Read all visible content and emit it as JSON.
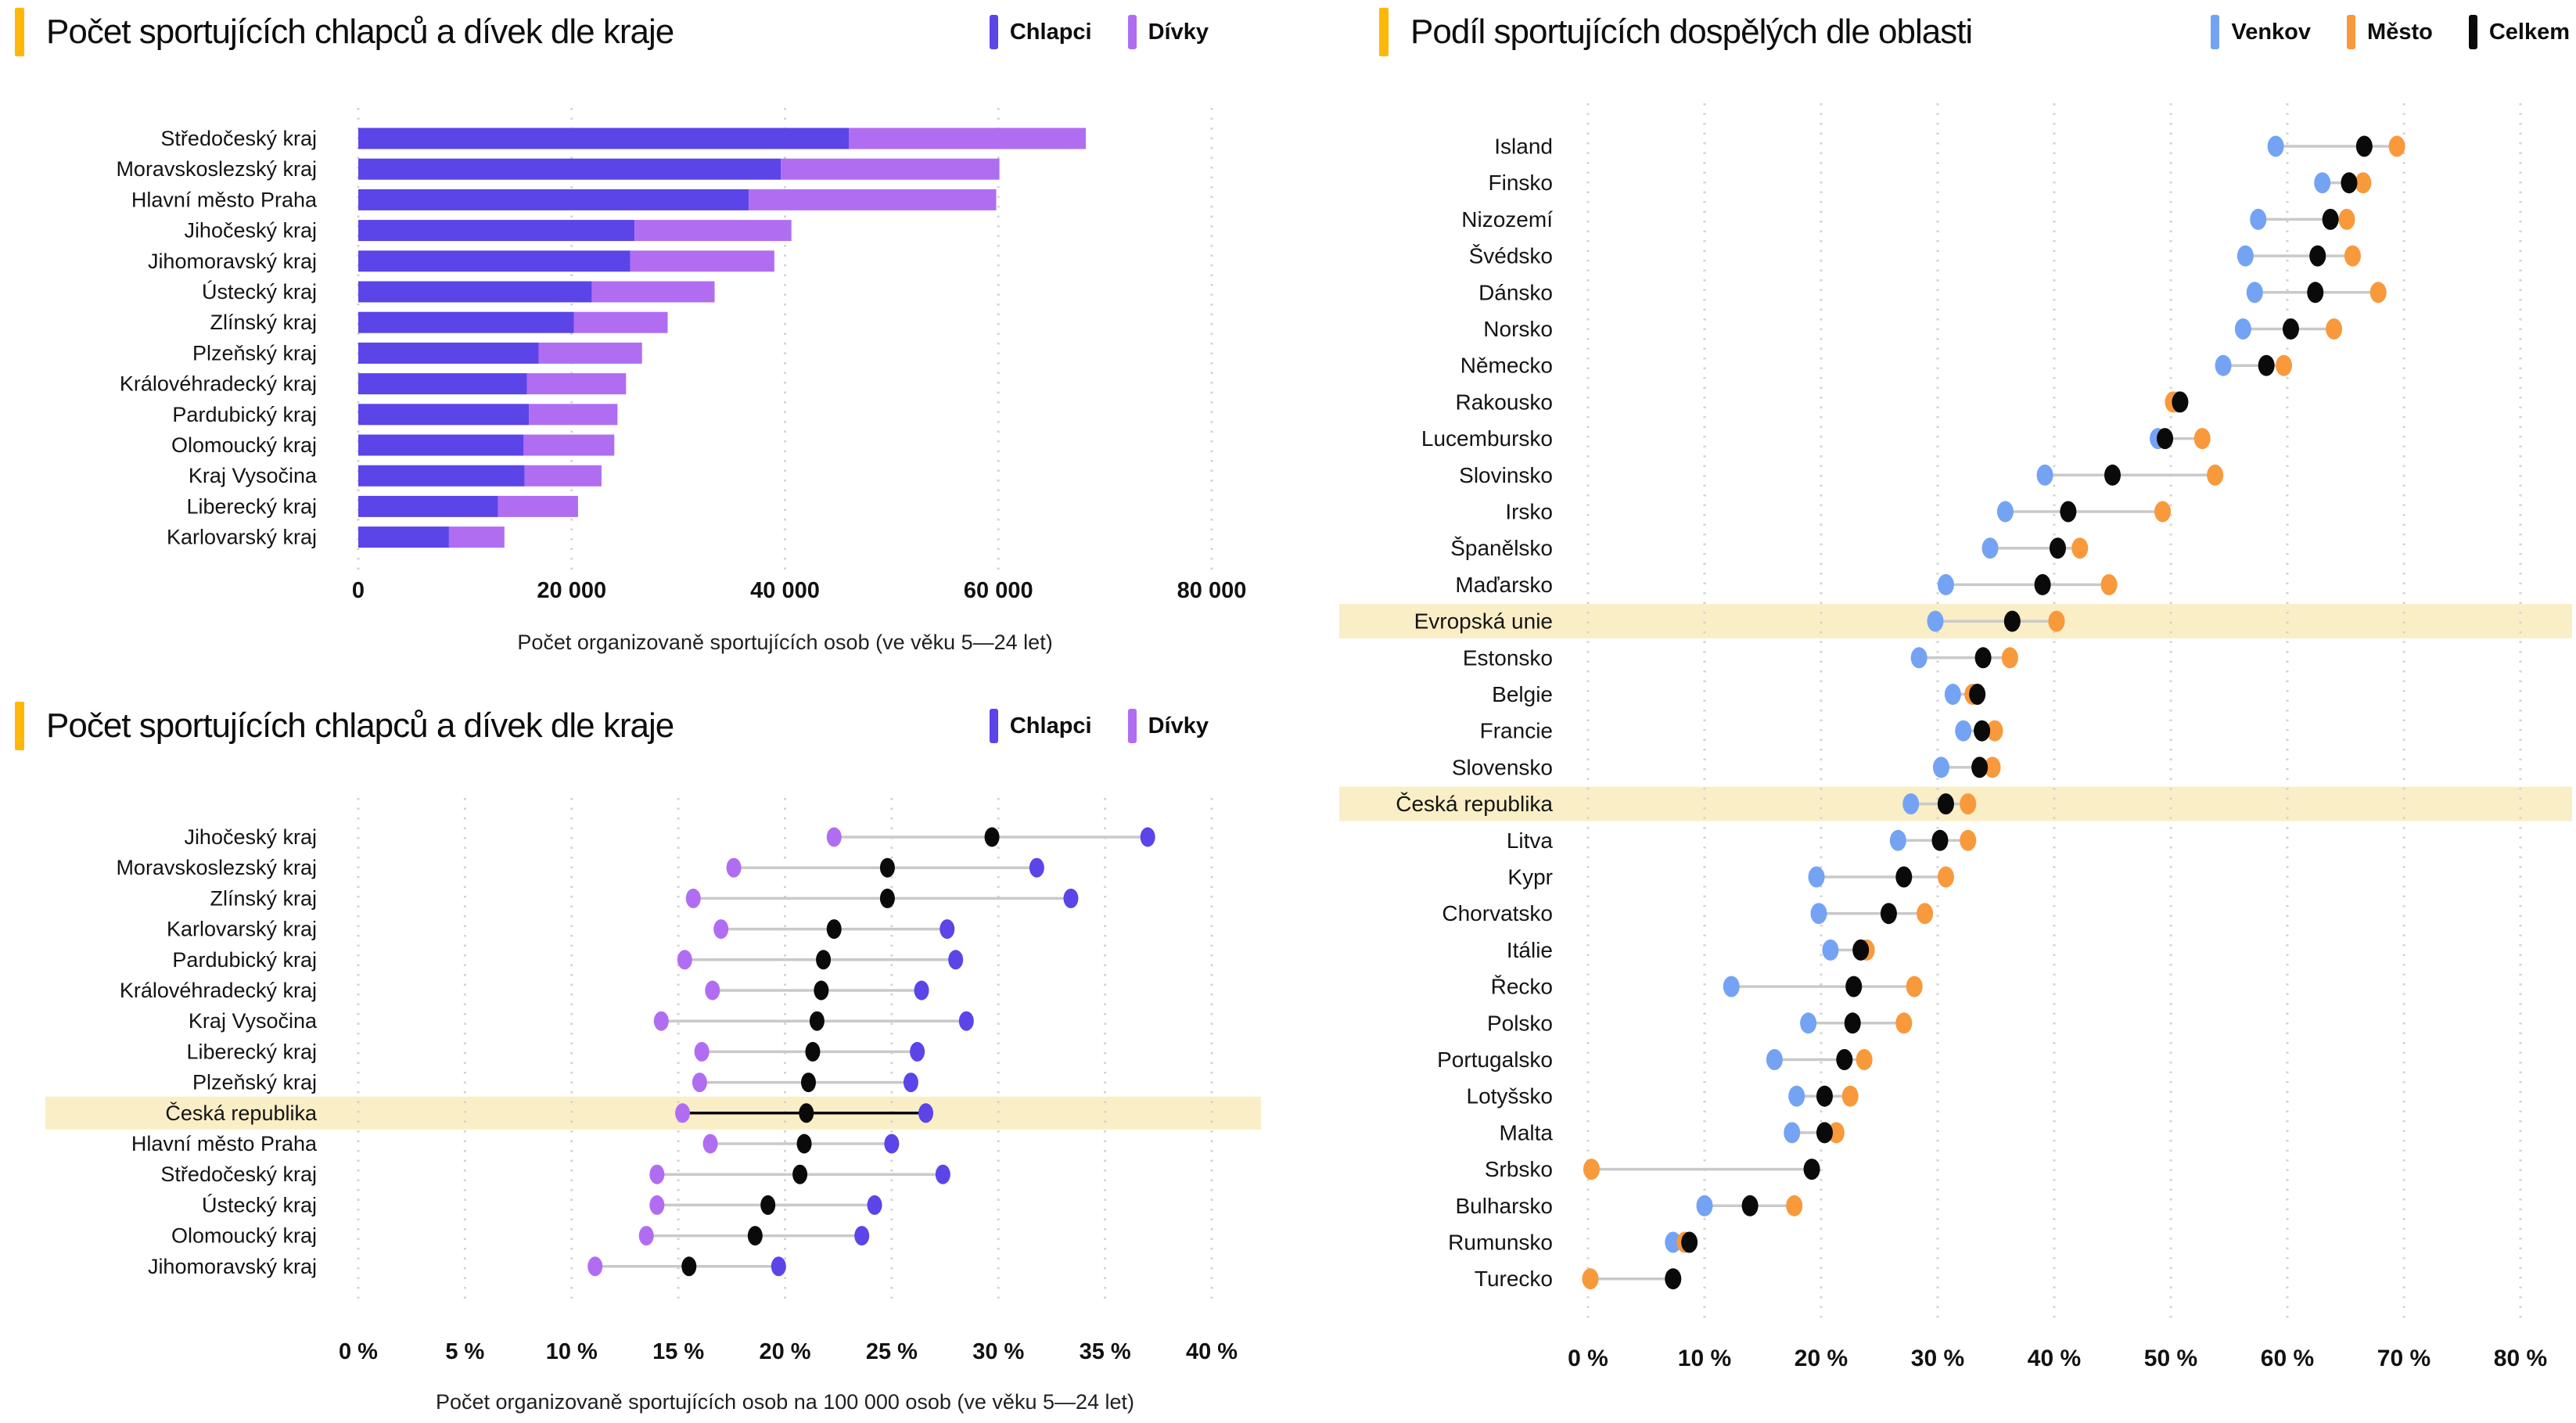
{
  "colors": {
    "accent": "#ffb70a",
    "highlight_band": "#faeec6",
    "grid": "#d2d2d2",
    "connector": "#c9c9c9",
    "chlapci": "#5b44e8",
    "divky": "#b16df2",
    "venkov": "#74a3f3",
    "mesto": "#f8993c",
    "celkem": "#0a0a0a"
  },
  "chart_data": [
    {
      "id": "sportujici-deti-kraje-sloupce",
      "type": "bar",
      "stacked": true,
      "orientation": "horizontal",
      "title": "Počet sportujících chlapců a dívek dle kraje",
      "xlabel": "Počet organizovaně sportujících osob (ve věku 5—24 let)",
      "xlim": [
        0,
        80000
      ],
      "grid": true,
      "legend_position": "top-right",
      "x_ticks": [
        {
          "value": 0,
          "label": "0"
        },
        {
          "value": 20000,
          "label": "20 000"
        },
        {
          "value": 40000,
          "label": "40 000"
        },
        {
          "value": 60000,
          "label": "60 000"
        },
        {
          "value": 80000,
          "label": "80 000"
        }
      ],
      "categories": [
        "Středočeský kraj",
        "Moravskoslezský kraj",
        "Hlavní město Praha",
        "Jihočeský kraj",
        "Jihomoravský kraj",
        "Ústecký kraj",
        "Zlínský kraj",
        "Plzeňský kraj",
        "Královéhradecký kraj",
        "Pardubický kraj",
        "Olomoucký kraj",
        "Kraj Vysočina",
        "Liberecký kraj",
        "Karlovarský kraj"
      ],
      "series": [
        {
          "name": "Chlapci",
          "color": "#5b44e8",
          "values": [
            46000,
            39600,
            36600,
            25900,
            25500,
            21900,
            20200,
            16900,
            15800,
            16000,
            15500,
            15600,
            13100,
            8500
          ]
        },
        {
          "name": "Dívky",
          "color": "#b16df2",
          "values": [
            22200,
            20500,
            23200,
            14700,
            13500,
            11500,
            8800,
            9700,
            9300,
            8300,
            8500,
            7200,
            7500,
            5200
          ]
        }
      ],
      "legend": [
        {
          "label": "Chlapci",
          "color": "#5b44e8"
        },
        {
          "label": "Dívky",
          "color": "#b16df2"
        }
      ],
      "highlights": []
    },
    {
      "id": "sportujici-deti-kraje-dumbbell",
      "type": "scatter",
      "variant": "dumbbell",
      "title": "Počet sportujících chlapců a dívek dle kraje",
      "xlabel": "Počet organizovaně sportujících osob na 100 000 osob (ve věku 5—24 let)",
      "xlim": [
        0,
        40
      ],
      "grid": true,
      "legend_position": "top-right",
      "x_ticks": [
        {
          "value": 0,
          "label": "0 %"
        },
        {
          "value": 5,
          "label": "5 %"
        },
        {
          "value": 10,
          "label": "10 %"
        },
        {
          "value": 15,
          "label": "15 %"
        },
        {
          "value": 20,
          "label": "20 %"
        },
        {
          "value": 25,
          "label": "25 %"
        },
        {
          "value": 30,
          "label": "30 %"
        },
        {
          "value": 35,
          "label": "35 %"
        },
        {
          "value": 40,
          "label": "40 %"
        }
      ],
      "categories": [
        "Jihočeský kraj",
        "Moravskoslezský kraj",
        "Zlínský kraj",
        "Karlovarský kraj",
        "Pardubický kraj",
        "Královéhradecký kraj",
        "Kraj Vysočina",
        "Liberecký kraj",
        "Plzeňský kraj",
        "Česká republika",
        "Hlavní město Praha",
        "Středočeský kraj",
        "Ústecký kraj",
        "Olomoucký kraj",
        "Jihomoravský kraj"
      ],
      "series": [
        {
          "name": "Dívky",
          "color": "#b16df2",
          "values": [
            22.3,
            17.6,
            15.7,
            17.0,
            15.3,
            16.6,
            14.2,
            16.1,
            16.0,
            15.2,
            16.5,
            14.0,
            14.0,
            13.5,
            11.1
          ]
        },
        {
          "name": "Chlapci",
          "color": "#5b44e8",
          "values": [
            37.0,
            31.8,
            33.4,
            27.6,
            28.0,
            26.4,
            28.5,
            26.2,
            25.9,
            26.6,
            25.0,
            27.4,
            24.2,
            23.6,
            19.7
          ]
        },
        {
          "name": "Celkem",
          "color": "#0a0a0a",
          "values": [
            29.7,
            24.8,
            24.8,
            22.3,
            21.8,
            21.7,
            21.5,
            21.3,
            21.1,
            21.0,
            20.9,
            20.7,
            19.2,
            18.6,
            15.5
          ]
        }
      ],
      "legend": [
        {
          "label": "Chlapci",
          "color": "#5b44e8"
        },
        {
          "label": "Dívky",
          "color": "#b16df2"
        }
      ],
      "highlights": [
        "Česká republika"
      ],
      "highlight_connector_black": true
    },
    {
      "id": "sportujici-dospeli-oblasti",
      "type": "scatter",
      "variant": "dumbbell",
      "title": "Podíl sportujících dospělých dle oblasti",
      "xlabel": "",
      "xlim": [
        0,
        80
      ],
      "grid": true,
      "legend_position": "top-right",
      "x_ticks": [
        {
          "value": 0,
          "label": "0 %"
        },
        {
          "value": 10,
          "label": "10 %"
        },
        {
          "value": 20,
          "label": "20 %"
        },
        {
          "value": 30,
          "label": "30 %"
        },
        {
          "value": 40,
          "label": "40 %"
        },
        {
          "value": 50,
          "label": "50 %"
        },
        {
          "value": 60,
          "label": "60 %"
        },
        {
          "value": 70,
          "label": "70 %"
        },
        {
          "value": 80,
          "label": "80 %"
        }
      ],
      "categories": [
        "Island",
        "Finsko",
        "Nizozemí",
        "Švédsko",
        "Dánsko",
        "Norsko",
        "Německo",
        "Rakousko",
        "Lucembursko",
        "Slovinsko",
        "Irsko",
        "Španělsko",
        "Maďarsko",
        "Evropská unie",
        "Estonsko",
        "Belgie",
        "Francie",
        "Slovensko",
        "Česká republika",
        "Litva",
        "Kypr",
        "Chorvatsko",
        "Itálie",
        "Řecko",
        "Polsko",
        "Portugalsko",
        "Lotyšsko",
        "Malta",
        "Srbsko",
        "Bulharsko",
        "Rumunsko",
        "Turecko"
      ],
      "series": [
        {
          "name": "Venkov",
          "color": "#74a3f3",
          "values": [
            59.0,
            63.0,
            57.5,
            56.4,
            57.2,
            56.2,
            54.5,
            50.6,
            48.9,
            39.2,
            35.8,
            34.5,
            30.7,
            29.8,
            28.4,
            31.3,
            32.2,
            30.3,
            27.7,
            26.6,
            19.6,
            19.8,
            20.8,
            12.3,
            18.9,
            16.0,
            17.9,
            17.5,
            null,
            10.0,
            7.3,
            null
          ]
        },
        {
          "name": "Město",
          "color": "#f8993c",
          "values": [
            69.4,
            66.5,
            65.1,
            65.6,
            67.8,
            64.0,
            59.7,
            50.2,
            52.7,
            53.8,
            49.3,
            42.2,
            44.7,
            40.2,
            36.2,
            33.0,
            34.9,
            34.7,
            32.6,
            32.6,
            30.7,
            28.9,
            23.9,
            28.0,
            27.1,
            23.7,
            22.5,
            21.3,
            0.3,
            17.7,
            8.3,
            0.2
          ]
        },
        {
          "name": "Celkem",
          "color": "#0a0a0a",
          "values": [
            66.6,
            65.3,
            63.7,
            62.6,
            62.4,
            60.3,
            58.2,
            50.8,
            49.5,
            45.0,
            41.2,
            40.3,
            39.0,
            36.4,
            33.9,
            33.4,
            33.8,
            33.6,
            30.7,
            30.2,
            27.1,
            25.8,
            23.4,
            22.8,
            22.7,
            22.0,
            20.3,
            20.3,
            19.2,
            13.9,
            8.7,
            7.3
          ]
        }
      ],
      "legend": [
        {
          "label": "Venkov",
          "color": "#74a3f3"
        },
        {
          "label": "Město",
          "color": "#f8993c"
        },
        {
          "label": "Celkem",
          "color": "#0a0a0a"
        }
      ],
      "highlights": [
        "Evropská unie",
        "Česká republika"
      ],
      "highlight_connector_black": false
    }
  ]
}
